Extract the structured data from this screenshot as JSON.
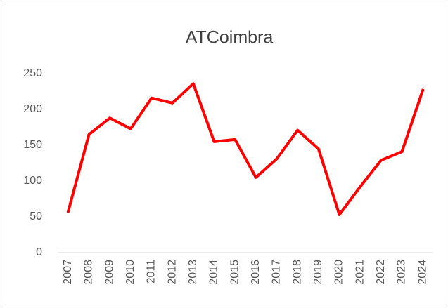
{
  "chart_data": {
    "type": "line",
    "title": "ATCoimbra",
    "categories": [
      "2007",
      "2008",
      "2009",
      "2010",
      "2011",
      "2012",
      "2013",
      "2014",
      "2015",
      "2016",
      "2017",
      "2018",
      "2019",
      "2020",
      "2021",
      "2022",
      "2023",
      "2024"
    ],
    "series": [
      {
        "name": "ATCoimbra",
        "color": "#ff0000",
        "values": [
          57,
          165,
          188,
          173,
          216,
          209,
          236,
          155,
          158,
          105,
          131,
          171,
          145,
          53,
          92,
          129,
          141,
          227
        ]
      }
    ],
    "ylim": [
      0,
      250
    ],
    "yticks": [
      0,
      50,
      100,
      150,
      200,
      250
    ],
    "grid": false
  }
}
